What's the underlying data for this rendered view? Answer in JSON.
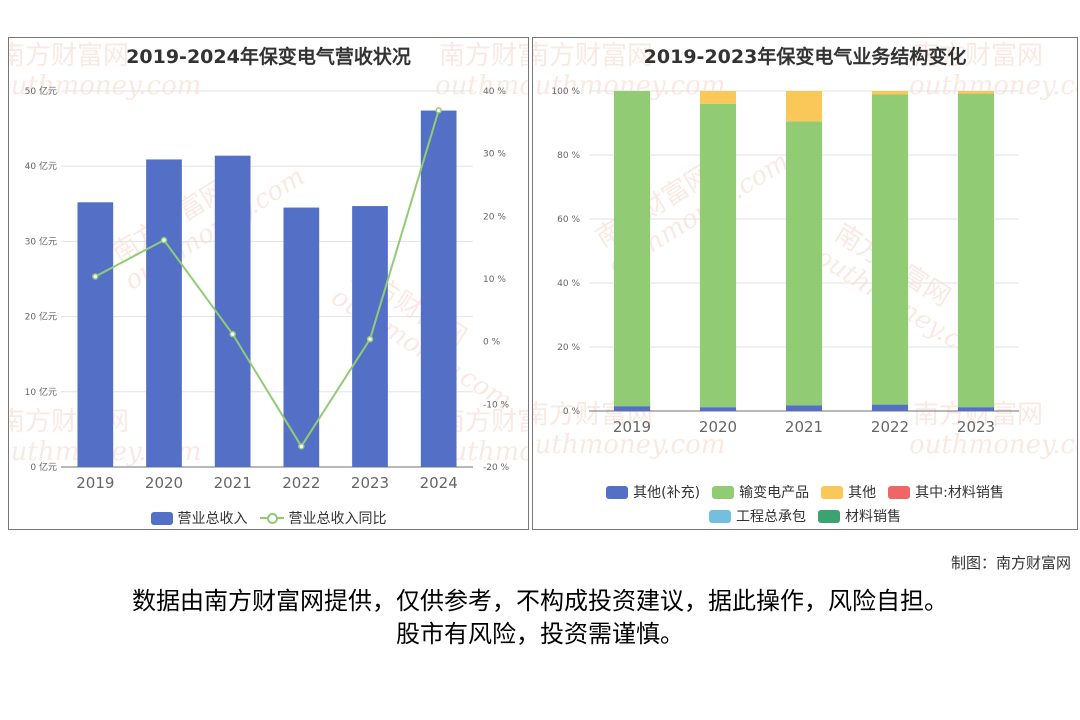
{
  "footer": {
    "credit": "制图：南方财富网",
    "disclaimer_line1": "数据由南方财富网提供，仅供参考，不构成投资建议，据此操作，风险自担。",
    "disclaimer_line2": "股市有风险，投资需谨慎。"
  },
  "watermark": {
    "cn": "南方财富网",
    "en": "outhmoney.com"
  },
  "chart_data": [
    {
      "type": "bar",
      "title": "2019-2024年保变电气营收状况",
      "categories": [
        "2019",
        "2020",
        "2021",
        "2022",
        "2023",
        "2024"
      ],
      "series": [
        {
          "name": "营业总收入",
          "type": "bar",
          "axis": "left",
          "color": "#5470c6",
          "values": [
            35.2,
            40.9,
            41.4,
            34.5,
            34.7,
            47.4
          ]
        },
        {
          "name": "营业总收入同比",
          "type": "line",
          "axis": "right",
          "color": "#91cc75",
          "values": [
            10.4,
            16.2,
            1.2,
            -16.7,
            0.4,
            36.9
          ]
        }
      ],
      "y_left": {
        "ylim": [
          0,
          50
        ],
        "ticks": [
          0,
          10,
          20,
          30,
          40,
          50
        ],
        "unit": "亿元",
        "tick_labels": [
          "0 亿元",
          "10 亿元",
          "20 亿元",
          "30 亿元",
          "40 亿元",
          "50 亿元"
        ]
      },
      "y_right": {
        "ylim": [
          -20,
          40
        ],
        "ticks": [
          -20,
          -10,
          0,
          10,
          20,
          30,
          40
        ],
        "unit": "%",
        "tick_labels": [
          "-20 %",
          "-10 %",
          "0 %",
          "10 %",
          "20 %",
          "30 %",
          "40 %"
        ]
      },
      "grid": true,
      "legend_position": "bottom"
    },
    {
      "type": "bar",
      "stacked": true,
      "title": "2019-2023年保变电气业务结构变化",
      "categories": [
        "2019",
        "2020",
        "2021",
        "2022",
        "2023"
      ],
      "series": [
        {
          "name": "其他(补充)",
          "color": "#5470c6",
          "values": [
            1.5,
            1.2,
            1.8,
            2.0,
            1.2
          ]
        },
        {
          "name": "输变电产品",
          "color": "#91cc75",
          "values": [
            98.5,
            94.8,
            88.7,
            96.9,
            98.0
          ]
        },
        {
          "name": "其他",
          "color": "#fac858",
          "values": [
            0.0,
            4.0,
            9.5,
            1.1,
            0.8
          ]
        },
        {
          "name": "其中:材料销售",
          "color": "#ee6666",
          "values": [
            0,
            0,
            0,
            0,
            0
          ]
        },
        {
          "name": "工程总承包",
          "color": "#73c0de",
          "values": [
            0,
            0,
            0,
            0,
            0
          ]
        },
        {
          "name": "材料销售",
          "color": "#3ba272",
          "values": [
            0,
            0,
            0,
            0,
            0
          ]
        }
      ],
      "ylim": [
        0,
        100
      ],
      "ticks": [
        0,
        20,
        40,
        60,
        80,
        100
      ],
      "tick_labels": [
        "0 %",
        "20 %",
        "40 %",
        "60 %",
        "80 %",
        "100 %"
      ],
      "grid": true,
      "legend_position": "bottom"
    }
  ]
}
